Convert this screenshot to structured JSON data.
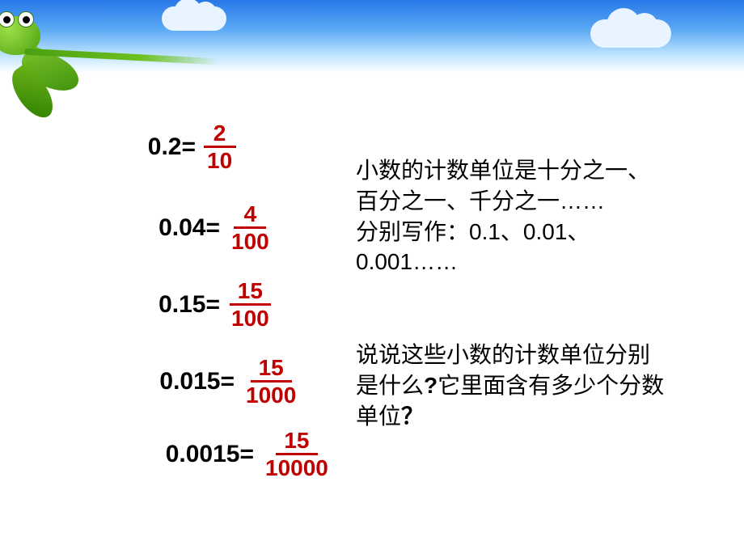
{
  "slide": {
    "background": {
      "sky_gradient": [
        "#2878e8",
        "#5aa8f5",
        "#bde3ff",
        "#ffffff"
      ],
      "clouds": 2,
      "decoration": "frog-on-leaves"
    },
    "equations": [
      {
        "decimal": "0.2=",
        "numerator": "2",
        "denominator": "10"
      },
      {
        "decimal": "0.04=",
        "numerator": "4",
        "denominator": "100"
      },
      {
        "decimal": "0.15=",
        "numerator": "15",
        "denominator": "100"
      },
      {
        "decimal": "0.015=",
        "numerator": "15",
        "denominator": "1000"
      },
      {
        "decimal": "0.0015=",
        "numerator": "15",
        "denominator": "10000"
      }
    ],
    "paragraph1": {
      "line1": "小数的计数单位是十分之一、",
      "line2": "百分之一、千分之一……",
      "line3": "分别写作：0.1、0.01、",
      "line4": "0.001……"
    },
    "paragraph2": {
      "line1": "说说这些小数的计数单位分别",
      "line2_a": "是什么",
      "q1": "?",
      "line2_b": "它里面含有多少个分数",
      "line3": "单位",
      "q2": "？"
    },
    "colors": {
      "fraction_color": "#c00000",
      "text_color": "#000000"
    },
    "fonts": {
      "equation_label_size": 30,
      "fraction_size": 28,
      "body_text_size": 28
    }
  }
}
